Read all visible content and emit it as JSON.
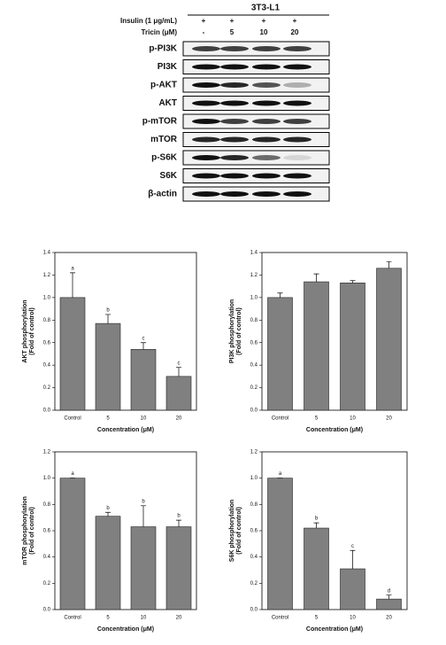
{
  "blot": {
    "title": "3T3-L1",
    "treatments": [
      {
        "label": "Insulin (1 μg/mL)",
        "values": [
          "+",
          "+",
          "+",
          "+"
        ]
      },
      {
        "label": "Tricin (μM)",
        "values": [
          "-",
          "5",
          "10",
          "20"
        ]
      }
    ],
    "rows": [
      "p-PI3K",
      "PI3K",
      "p-AKT",
      "AKT",
      "p-mTOR",
      "mTOR",
      "p-S6K",
      "S6K",
      "β-actin"
    ]
  },
  "chart_data": [
    {
      "type": "bar",
      "ylabel": [
        "AKT phosphorylation",
        "(Fold of control)"
      ],
      "xlabel": "Concentration (μM)",
      "categories": [
        "Control",
        "5",
        "10",
        "20"
      ],
      "values": [
        1.0,
        0.77,
        0.54,
        0.3
      ],
      "errors": [
        0.22,
        0.08,
        0.06,
        0.08
      ],
      "letters": [
        "a",
        "b",
        "c",
        "c"
      ],
      "color": "#808080",
      "ylim": [
        0,
        1.4
      ],
      "yticks": [
        {
          "value": 0,
          "label": "0.0"
        },
        {
          "value": 0.2,
          "label": "0.2"
        },
        {
          "value": 0.4,
          "label": "0.4"
        },
        {
          "value": 0.6,
          "label": "0.6"
        },
        {
          "value": 0.8,
          "label": "0.8"
        },
        {
          "value": 1,
          "label": "1.0"
        },
        {
          "value": 1.2,
          "label": "1.2"
        },
        {
          "value": 1.4,
          "label": "1.4"
        }
      ]
    },
    {
      "type": "bar",
      "ylabel": [
        "PI3K phosphorylation",
        "(Fold of control)"
      ],
      "xlabel": "Concentration (μM)",
      "categories": [
        "Control",
        "5",
        "10",
        "20"
      ],
      "values": [
        1.0,
        1.14,
        1.13,
        1.26
      ],
      "errors": [
        0.04,
        0.07,
        0.02,
        0.06
      ],
      "color": "#808080",
      "ylim": [
        0,
        1.4
      ],
      "yticks": [
        {
          "value": 0,
          "label": "0.0"
        },
        {
          "value": 0.2,
          "label": "0.2"
        },
        {
          "value": 0.4,
          "label": "0.4"
        },
        {
          "value": 0.6,
          "label": "0.6"
        },
        {
          "value": 0.8,
          "label": "0.8"
        },
        {
          "value": 1,
          "label": "1.0"
        },
        {
          "value": 1.2,
          "label": "1.2"
        },
        {
          "value": 1.4,
          "label": "1.4"
        }
      ]
    },
    {
      "type": "bar",
      "ylabel": [
        "mTOR phosphorylation",
        "(Fold of control)"
      ],
      "xlabel": "Concentration (μM)",
      "categories": [
        "Control",
        "5",
        "10",
        "20"
      ],
      "values": [
        1.0,
        0.71,
        0.63,
        0.63
      ],
      "errors": [
        0,
        0.03,
        0.16,
        0.05
      ],
      "letters": [
        "a",
        "b",
        "b",
        "b"
      ],
      "color": "#808080",
      "ylim": [
        0,
        1.2
      ],
      "yticks": [
        {
          "value": 0,
          "label": "0.0"
        },
        {
          "value": 0.2,
          "label": "0.2"
        },
        {
          "value": 0.4,
          "label": "0.4"
        },
        {
          "value": 0.6,
          "label": "0.6"
        },
        {
          "value": 0.8,
          "label": "0.8"
        },
        {
          "value": 1,
          "label": "1.0"
        },
        {
          "value": 1.2,
          "label": "1.2"
        }
      ]
    },
    {
      "type": "bar",
      "ylabel": [
        "S6K phosphorylation",
        "(Fold of control)"
      ],
      "xlabel": "Concentration (μM)",
      "categories": [
        "Control",
        "5",
        "10",
        "20"
      ],
      "values": [
        1.0,
        0.62,
        0.31,
        0.08
      ],
      "errors": [
        0,
        0.04,
        0.14,
        0.03
      ],
      "letters": [
        "a",
        "b",
        "c",
        "d"
      ],
      "color": "#808080",
      "ylim": [
        0,
        1.2
      ],
      "yticks": [
        {
          "value": 0,
          "label": "0.0"
        },
        {
          "value": 0.2,
          "label": "0.2"
        },
        {
          "value": 0.4,
          "label": "0.4"
        },
        {
          "value": 0.6,
          "label": "0.6"
        },
        {
          "value": 0.8,
          "label": "0.8"
        },
        {
          "value": 1,
          "label": "1.0"
        },
        {
          "value": 1.2,
          "label": "1.2"
        }
      ]
    }
  ]
}
